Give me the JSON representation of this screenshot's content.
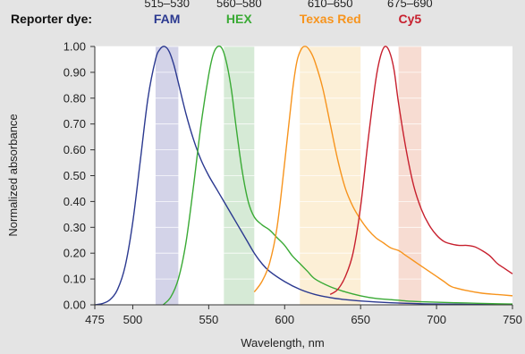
{
  "header": {
    "reporter_label": "Reporter dye:"
  },
  "chart_data": {
    "type": "line",
    "title": "",
    "xlabel": "Wavelength, nm",
    "ylabel": "Normalized absorbance",
    "xlim": [
      475,
      750
    ],
    "ylim": [
      0,
      1
    ],
    "x_ticks": [
      "475",
      "500",
      "550",
      "600",
      "650",
      "700",
      "750"
    ],
    "y_ticks": [
      "0.00",
      "0.10",
      "0.20",
      "0.30",
      "0.40",
      "0.50",
      "0.60",
      "0.70",
      "0.80",
      "0.90",
      "1.00"
    ],
    "filter_bands": [
      {
        "label": "515–530",
        "start": 515,
        "end": 530,
        "color": "#d3d3e8"
      },
      {
        "label": "560–580",
        "start": 560,
        "end": 580,
        "color": "#d6ead6"
      },
      {
        "label": "610–650",
        "start": 610,
        "end": 650,
        "color": "#fcefd6"
      },
      {
        "label": "675–690",
        "start": 675,
        "end": 690,
        "color": "#f7dcd2"
      }
    ],
    "series": [
      {
        "name": "FAM",
        "color": "#2b3990",
        "x": [
          475,
          480,
          485,
          490,
          495,
          500,
          505,
          510,
          515,
          518,
          521,
          524,
          527,
          530,
          535,
          540,
          545,
          550,
          555,
          560,
          565,
          570,
          575,
          580,
          585,
          590,
          600,
          610,
          620,
          630,
          640,
          650,
          660,
          670,
          680,
          690,
          700,
          720,
          740,
          750
        ],
        "y": [
          0.0,
          0.005,
          0.02,
          0.06,
          0.15,
          0.32,
          0.56,
          0.8,
          0.95,
          0.99,
          1.0,
          0.98,
          0.93,
          0.86,
          0.74,
          0.64,
          0.56,
          0.5,
          0.45,
          0.4,
          0.35,
          0.3,
          0.25,
          0.2,
          0.16,
          0.13,
          0.09,
          0.06,
          0.04,
          0.028,
          0.02,
          0.015,
          0.011,
          0.008,
          0.006,
          0.004,
          0.003,
          0.002,
          0.001,
          0.001
        ]
      },
      {
        "name": "HEX",
        "color": "#3aaa35",
        "x": [
          520,
          525,
          530,
          535,
          540,
          545,
          550,
          553,
          556,
          559,
          562,
          565,
          568,
          572,
          576,
          580,
          585,
          590,
          595,
          600,
          605,
          610,
          615,
          620,
          630,
          640,
          650,
          660,
          670,
          680,
          690,
          700,
          720,
          740,
          750
        ],
        "y": [
          0.0,
          0.03,
          0.1,
          0.24,
          0.46,
          0.7,
          0.89,
          0.97,
          1.0,
          0.99,
          0.93,
          0.83,
          0.69,
          0.52,
          0.4,
          0.34,
          0.31,
          0.29,
          0.26,
          0.23,
          0.19,
          0.16,
          0.13,
          0.1,
          0.07,
          0.05,
          0.035,
          0.025,
          0.02,
          0.015,
          0.012,
          0.01,
          0.007,
          0.004,
          0.003
        ]
      },
      {
        "name": "Texas Red",
        "color": "#f7941d",
        "x": [
          580,
          585,
          590,
          595,
          600,
          605,
          608,
          611,
          614,
          617,
          620,
          625,
          630,
          635,
          640,
          645,
          650,
          655,
          660,
          665,
          670,
          675,
          680,
          685,
          690,
          695,
          700,
          705,
          710,
          720,
          730,
          740,
          750
        ],
        "y": [
          0.05,
          0.09,
          0.16,
          0.3,
          0.55,
          0.82,
          0.94,
          0.99,
          1.0,
          0.98,
          0.94,
          0.84,
          0.7,
          0.56,
          0.45,
          0.38,
          0.33,
          0.29,
          0.26,
          0.24,
          0.22,
          0.21,
          0.19,
          0.17,
          0.15,
          0.13,
          0.11,
          0.09,
          0.07,
          0.055,
          0.045,
          0.04,
          0.035
        ]
      },
      {
        "name": "Cy5",
        "color": "#c7202e",
        "x": [
          630,
          635,
          640,
          645,
          650,
          655,
          660,
          663,
          666,
          669,
          672,
          675,
          680,
          685,
          690,
          695,
          700,
          705,
          710,
          715,
          720,
          725,
          730,
          735,
          740,
          745,
          750
        ],
        "y": [
          0.04,
          0.06,
          0.11,
          0.2,
          0.38,
          0.64,
          0.87,
          0.96,
          1.0,
          0.98,
          0.91,
          0.78,
          0.6,
          0.46,
          0.37,
          0.31,
          0.27,
          0.245,
          0.235,
          0.23,
          0.23,
          0.225,
          0.21,
          0.19,
          0.16,
          0.14,
          0.12
        ]
      }
    ]
  }
}
